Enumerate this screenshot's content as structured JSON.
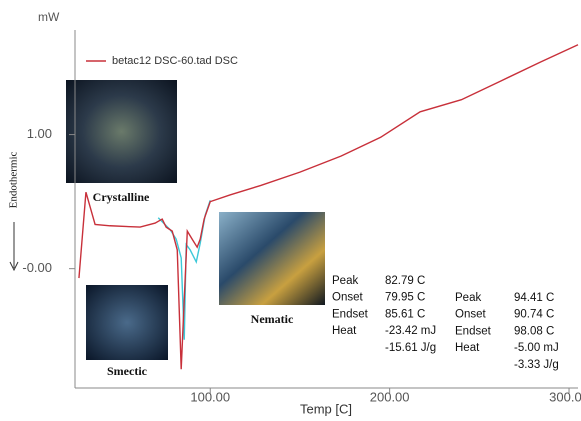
{
  "chart_data": {
    "type": "line",
    "ylabel_top": "mW",
    "ylabel": "Endothermic",
    "xlabel": "Temp [C]",
    "xlim": [
      24.6,
      305
    ],
    "ylim": [
      -0.89,
      1.78
    ],
    "xticks": [
      {
        "value": 100,
        "label": "100.00"
      },
      {
        "value": 200,
        "label": "200.00"
      },
      {
        "value": 300,
        "label": "300.00"
      }
    ],
    "yticks": [
      {
        "value": 0,
        "label": "-0.00"
      },
      {
        "value": 1,
        "label": "1.00"
      }
    ],
    "series": [
      {
        "name": "betac12 DSC-60.tad DSC",
        "color": "#c8303a",
        "x": [
          26.8,
          30.7,
          35.8,
          44.1,
          60.9,
          69.3,
          73.2,
          75.4,
          78.8,
          81.6,
          83.8,
          85.5,
          87.2,
          89.9,
          92.7,
          94.4,
          96.6,
          100,
          111,
          128,
          150,
          173,
          195,
          217,
          240,
          262,
          284,
          305
        ],
        "values": [
          -0.07,
          0.57,
          0.33,
          0.32,
          0.31,
          0.34,
          0.37,
          0.31,
          0.28,
          0.14,
          -0.75,
          -0.23,
          0.28,
          0.22,
          0.16,
          0.22,
          0.37,
          0.5,
          0.55,
          0.62,
          0.72,
          0.84,
          0.98,
          1.17,
          1.26,
          1.4,
          1.54,
          1.67
        ]
      },
      {
        "color": "#3cc8d8",
        "x": [
          71,
          77.7,
          81,
          83.8,
          85.5,
          86.6,
          88.8,
          92.2,
          94.4,
          97.2,
          100
        ],
        "values": [
          0.38,
          0.29,
          0.22,
          0.08,
          -0.53,
          0.18,
          0.14,
          0.05,
          0.19,
          0.4,
          0.51
        ]
      }
    ],
    "phase_labels": [
      "Crystalline",
      "Smectic",
      "Nematic"
    ],
    "peak_tables": [
      {
        "labels": [
          "Peak",
          "Onset",
          "Endset",
          "Heat"
        ],
        "values": [
          "82.79 C",
          "79.95 C",
          "85.61 C",
          "-23.42 mJ",
          "-15.61 J/g"
        ]
      },
      {
        "labels": [
          "Peak",
          "Onset",
          "Endset",
          "Heat"
        ],
        "values": [
          "94.41 C",
          "90.74 C",
          "98.08 C",
          "-5.00 mJ",
          "-3.33 J/g"
        ]
      }
    ]
  }
}
